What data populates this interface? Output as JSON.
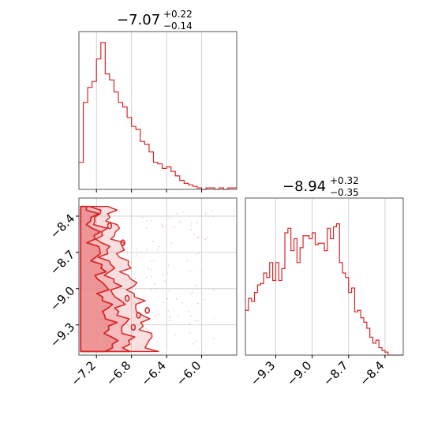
{
  "colors": {
    "accent": "#d62728",
    "fill": "#f2a3a5",
    "grid": "#c8c8c8",
    "axes": "#555555"
  },
  "chart_data": [
    {
      "type": "histogram",
      "panel": "top-left",
      "title": {
        "main": "−7.07",
        "sup": "+0.22",
        "sub": "−0.14"
      },
      "xlim": [
        -7.4,
        -5.6
      ],
      "xticks": [
        -7.2,
        -6.8,
        -6.4,
        -6.0
      ],
      "grid": true,
      "bins": {
        "start": -7.4,
        "width": 0.05
      },
      "values": [
        0.18,
        0.58,
        0.68,
        0.72,
        0.87,
        0.98,
        0.77,
        0.73,
        0.65,
        0.58,
        0.55,
        0.48,
        0.42,
        0.4,
        0.32,
        0.3,
        0.25,
        0.18,
        0.17,
        0.14,
        0.15,
        0.12,
        0.09,
        0.06,
        0.04,
        0.03,
        0.02,
        0.01,
        0.0,
        0.01,
        0.01,
        0.0,
        0.01,
        0.0,
        0.01,
        0.01
      ]
    },
    {
      "type": "contour",
      "panel": "bottom-left",
      "xlim": [
        -7.4,
        -5.6
      ],
      "ylim": [
        -9.55,
        -8.25
      ],
      "xticks": [
        -7.2,
        -6.8,
        -6.4,
        -6.0
      ],
      "yticks": [
        -8.4,
        -8.7,
        -9.0,
        -9.3
      ],
      "grid": true
    },
    {
      "type": "histogram",
      "panel": "bottom-right",
      "title": {
        "main": "−8.94",
        "sup": "+0.32",
        "sub": "−0.35"
      },
      "xlim": [
        -9.55,
        -8.25
      ],
      "xticks": [
        -9.3,
        -9.0,
        -8.7,
        -8.4
      ],
      "grid": true,
      "bins": {
        "start": -9.55,
        "width": 0.025
      },
      "values": [
        0.3,
        0.38,
        0.36,
        0.42,
        0.47,
        0.48,
        0.55,
        0.52,
        0.62,
        0.5,
        0.62,
        0.5,
        0.58,
        0.82,
        0.85,
        0.7,
        0.78,
        0.62,
        0.72,
        0.8,
        0.8,
        0.78,
        0.82,
        0.74,
        0.75,
        0.75,
        0.7,
        0.85,
        0.78,
        0.86,
        0.88,
        0.62,
        0.55,
        0.52,
        0.42,
        0.45,
        0.29,
        0.3,
        0.25,
        0.22,
        0.18,
        0.12,
        0.08,
        0.1,
        0.05,
        0.03,
        0.02,
        0.0,
        0.0,
        0.0,
        0.0,
        0.0
      ]
    }
  ]
}
